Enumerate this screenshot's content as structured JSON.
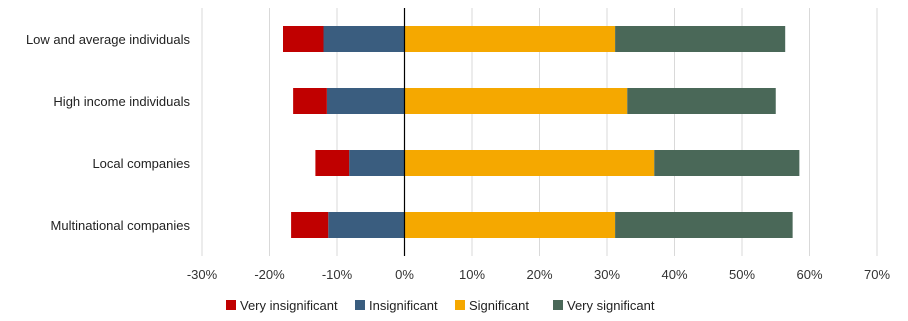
{
  "chart_data": {
    "type": "bar",
    "orientation": "horizontal",
    "stacked": true,
    "diverging": true,
    "categories": [
      "Low and average individuals",
      "High income individuals",
      "Local companies",
      "Multinational companies"
    ],
    "series": [
      {
        "name": "Very insignificant",
        "color": "#c00000",
        "values": [
          -6,
          -5,
          -5,
          -5.5
        ]
      },
      {
        "name": "Insignificant",
        "color": "#3a5d7f",
        "values": [
          -12,
          -11.5,
          -8.2,
          -11.3
        ]
      },
      {
        "name": "Significant",
        "color": "#f5a800",
        "values": [
          31.2,
          33,
          37,
          31.2
        ]
      },
      {
        "name": "Very significant",
        "color": "#4a6858",
        "values": [
          25.2,
          22,
          21.5,
          26.3
        ]
      }
    ],
    "xlim": [
      -30,
      70
    ],
    "xticks": [
      "-30%",
      "-20%",
      "-10%",
      "0%",
      "10%",
      "20%",
      "30%",
      "40%",
      "50%",
      "60%",
      "70%"
    ],
    "grid": true,
    "legend_position": "bottom"
  }
}
